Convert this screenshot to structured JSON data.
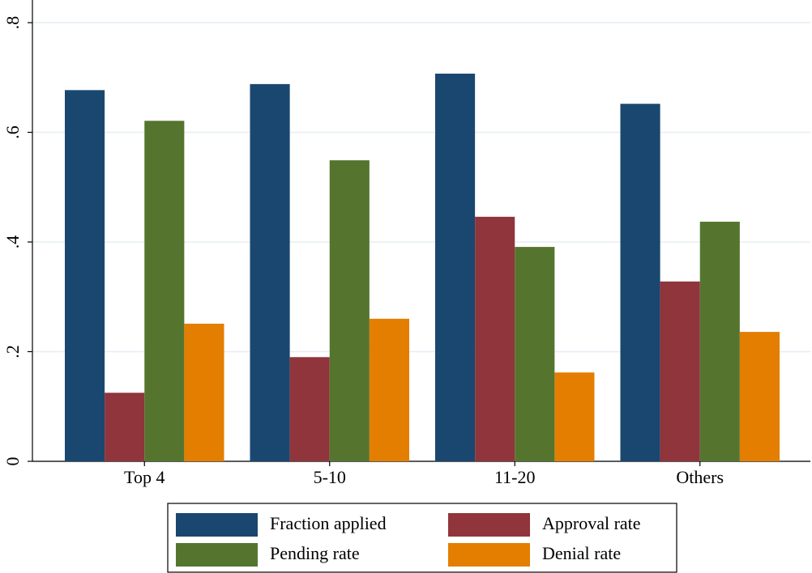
{
  "chart_data": {
    "type": "bar",
    "categories": [
      "Top 4",
      "5-10",
      "11-20",
      "Others"
    ],
    "series": [
      {
        "name": "Fraction applied",
        "color": "#1a476f",
        "values": [
          0.677,
          0.688,
          0.707,
          0.652
        ]
      },
      {
        "name": "Approval rate",
        "color": "#90353b",
        "values": [
          0.125,
          0.19,
          0.446,
          0.328
        ]
      },
      {
        "name": "Pending rate",
        "color": "#55752f",
        "values": [
          0.621,
          0.549,
          0.391,
          0.437
        ]
      },
      {
        "name": "Denial rate",
        "color": "#e37e00",
        "values": [
          0.251,
          0.26,
          0.162,
          0.236
        ]
      }
    ],
    "ylim": [
      0,
      0.8
    ],
    "yticks": [
      0,
      {
        "value": 0.2,
        "label": ".2"
      },
      {
        "value": 0.4,
        "label": ".4"
      },
      {
        "value": 0.6,
        "label": ".6"
      },
      {
        "value": 0.8,
        "label": ".8"
      }
    ],
    "grid": true
  }
}
